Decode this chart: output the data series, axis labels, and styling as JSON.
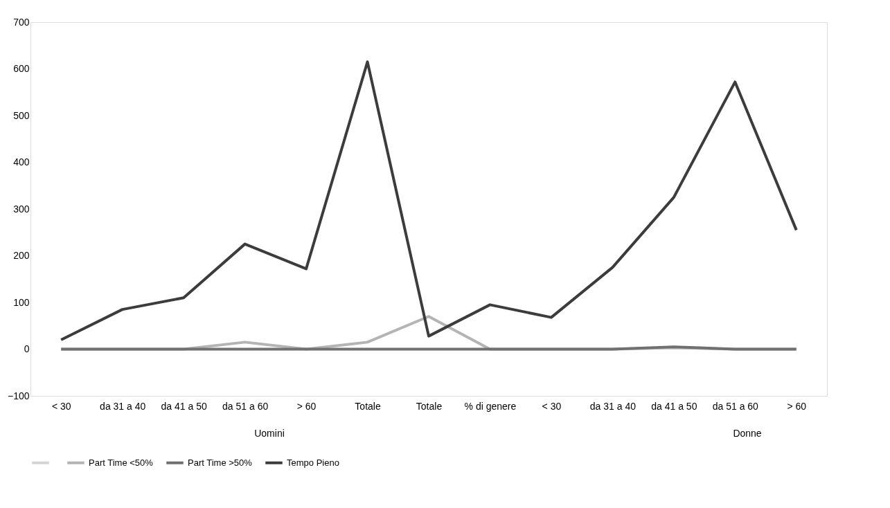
{
  "chart_data": {
    "type": "line",
    "categories": [
      "< 30",
      "da 31 a 40",
      "da 41 a 50",
      "da 51 a 60",
      "> 60",
      "Totale",
      "Totale",
      "% di genere",
      "< 30",
      "da 31 a 40",
      "da 41 a 50",
      "da 51 a 60",
      "> 60"
    ],
    "series": [
      {
        "color": "#d4d4d4",
        "values": [
          null,
          null,
          null,
          null,
          null,
          null,
          null,
          null,
          null,
          null,
          null,
          null,
          null
        ]
      },
      {
        "name": "Part Time <50%",
        "color": "#b4b4b4",
        "values": [
          0,
          0,
          0,
          15,
          0,
          15,
          70,
          0,
          0,
          0,
          3,
          0,
          0
        ]
      },
      {
        "name": "Part Time >50%",
        "color": "#707070",
        "values": [
          0,
          0,
          0,
          0,
          0,
          0,
          0,
          0,
          0,
          0,
          5,
          0,
          0
        ]
      },
      {
        "name": "Tempo Pieno",
        "color": "#3c3c3c",
        "values": [
          20,
          85,
          110,
          225,
          172,
          615,
          28,
          95,
          68,
          175,
          325,
          572,
          255
        ]
      }
    ],
    "ylim": [
      -100,
      700
    ],
    "yticks": [
      -100,
      0,
      100,
      200,
      300,
      400,
      500,
      600,
      700
    ],
    "grid": false,
    "legend": "bottom",
    "marker": "none",
    "line_style": "solid",
    "annotations": [
      "Uomini",
      "Donne"
    ]
  }
}
